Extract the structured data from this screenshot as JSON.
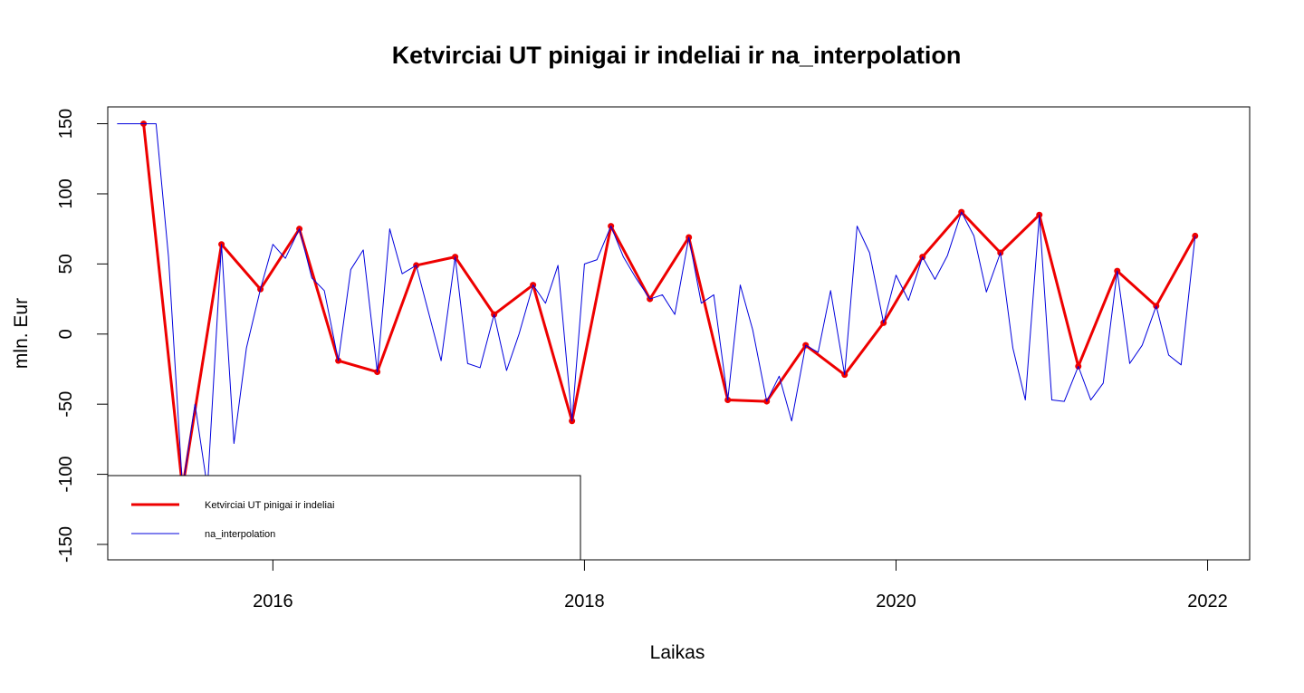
{
  "chart_data": {
    "type": "line",
    "title": "Ketvirciai UT pinigai ir indeliai ir na_interpolation",
    "xlabel": "Laikas",
    "ylabel": "mln. Eur",
    "xlim": [
      2014.94,
      2022.27
    ],
    "ylim": [
      -161,
      162
    ],
    "x_ticks": [
      2016,
      2018,
      2020,
      2022
    ],
    "y_ticks": [
      -150,
      -100,
      -50,
      0,
      50,
      100,
      150
    ],
    "grid": false,
    "legend_position": "bottom-left",
    "series": [
      {
        "name": "Ketvirciai UT pinigai ir indeliai",
        "color": "#ee0000",
        "style": "thick-line-with-points",
        "x": [
          2015.17,
          2015.42,
          2015.67,
          2015.92,
          2016.17,
          2016.42,
          2016.67,
          2016.92,
          2017.17,
          2017.42,
          2017.67,
          2017.92,
          2018.17,
          2018.42,
          2018.67,
          2018.92,
          2019.17,
          2019.42,
          2019.67,
          2019.92,
          2020.17,
          2020.42,
          2020.67,
          2020.92,
          2021.17,
          2021.42,
          2021.67,
          2021.92
        ],
        "values": [
          150,
          -110,
          64,
          32,
          75,
          -19,
          -27,
          49,
          55,
          14,
          35,
          -62,
          77,
          25,
          69,
          -47,
          -48,
          -8,
          -29,
          8,
          55,
          87,
          58,
          85,
          -23,
          45,
          20,
          70
        ]
      },
      {
        "name": "na_interpolation",
        "color": "#0000dd",
        "style": "thin-line",
        "x": [
          2015.0,
          2015.08,
          2015.17,
          2015.25,
          2015.33,
          2015.42,
          2015.5,
          2015.58,
          2015.67,
          2015.75,
          2015.83,
          2015.92,
          2016.0,
          2016.08,
          2016.17,
          2016.25,
          2016.33,
          2016.42,
          2016.5,
          2016.58,
          2016.67,
          2016.75,
          2016.83,
          2016.92,
          2017.0,
          2017.08,
          2017.17,
          2017.25,
          2017.33,
          2017.42,
          2017.5,
          2017.58,
          2017.67,
          2017.75,
          2017.83,
          2017.92,
          2018.0,
          2018.08,
          2018.17,
          2018.25,
          2018.33,
          2018.42,
          2018.5,
          2018.58,
          2018.67,
          2018.75,
          2018.83,
          2018.92,
          2019.0,
          2019.08,
          2019.17,
          2019.25,
          2019.33,
          2019.42,
          2019.5,
          2019.58,
          2019.67,
          2019.75,
          2019.83,
          2019.92,
          2020.0,
          2020.08,
          2020.17,
          2020.25,
          2020.33,
          2020.42,
          2020.5,
          2020.58,
          2020.67,
          2020.75,
          2020.83,
          2020.92,
          2021.0,
          2021.08,
          2021.17,
          2021.25,
          2021.33,
          2021.42,
          2021.5,
          2021.58,
          2021.67,
          2021.75,
          2021.83,
          2021.92
        ],
        "values": [
          150,
          150,
          150,
          150,
          55,
          -110,
          -50,
          -110,
          64,
          -78,
          -10,
          32,
          64,
          54,
          75,
          40,
          31,
          -19,
          46,
          60,
          -27,
          75,
          43,
          49,
          15,
          -19,
          55,
          -21,
          -24,
          14,
          -26,
          0,
          35,
          22,
          49,
          -62,
          50,
          53,
          77,
          55,
          40,
          25,
          28,
          14,
          69,
          22,
          28,
          -47,
          35,
          3,
          -48,
          -30,
          -62,
          -8,
          -13,
          31,
          -29,
          77,
          58,
          8,
          42,
          24,
          55,
          39,
          56,
          87,
          70,
          30,
          58,
          -10,
          -47,
          85,
          -47,
          -48,
          -23,
          -47,
          -35,
          45,
          -21,
          -8,
          20,
          -15,
          -22,
          70
        ]
      }
    ]
  }
}
